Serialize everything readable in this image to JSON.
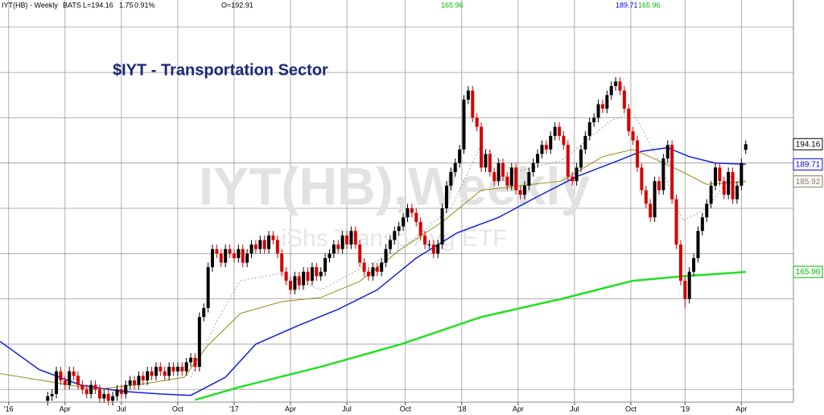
{
  "header": {
    "symbol": "IYT(HB) - Weekly",
    "exchange": "BATS",
    "last": "L=194.16",
    "change": "1.75",
    "change_pct": "0.91%",
    "open": "O=192.91",
    "ma_values": [
      {
        "text": "165.96",
        "color": "#00b800"
      },
      {
        "text": "189.71",
        "color": "#0000ee"
      },
      {
        "text": "165.96",
        "color": "#00b800"
      }
    ]
  },
  "chart_data": {
    "type": "candlestick",
    "title": "$IYT - Transportation Sector",
    "watermark": "IYT(HB),Weekly",
    "watermark_sub": "iShs Transp Avg ETF",
    "up_color": "#000000",
    "down_color": "#d40000",
    "grid": true,
    "xlim": [
      0,
      183
    ],
    "ylim": [
      137.2,
      226
    ],
    "xticks": [
      {
        "value": 2,
        "label": "'16"
      },
      {
        "value": 15,
        "label": "Apr"
      },
      {
        "value": 28,
        "label": "Jul"
      },
      {
        "value": 41,
        "label": "Oct"
      },
      {
        "value": 54,
        "label": "'17"
      },
      {
        "value": 67,
        "label": "Apr"
      },
      {
        "value": 80,
        "label": "Jul"
      },
      {
        "value": 93.5,
        "label": "Oct"
      },
      {
        "value": 106.5,
        "label": "'18"
      },
      {
        "value": 119.5,
        "label": "Apr"
      },
      {
        "value": 132.5,
        "label": "Jul"
      },
      {
        "value": 145.5,
        "label": "Oct"
      },
      {
        "value": 158,
        "label": "'19"
      },
      {
        "value": 171,
        "label": "Apr"
      }
    ],
    "ygrid": [
      140,
      150,
      160,
      170,
      180,
      190,
      200,
      210,
      220
    ],
    "x": [
      11,
      12,
      13,
      14,
      15,
      16,
      17,
      18,
      19,
      20,
      21,
      22,
      23,
      24,
      25,
      26,
      27,
      28,
      29,
      30,
      31,
      32,
      33,
      34,
      35,
      36,
      37,
      38,
      39,
      40,
      41,
      42,
      43,
      44,
      45,
      46,
      47,
      48,
      49,
      50,
      51,
      52,
      53,
      54,
      55,
      56,
      57,
      58,
      59,
      60,
      61,
      62,
      63,
      64,
      65,
      66,
      67,
      68,
      69,
      70,
      71,
      72,
      73,
      74,
      75,
      76,
      77,
      78,
      79,
      80,
      81,
      82,
      83,
      84,
      85,
      86,
      87,
      88,
      89,
      90,
      91,
      92,
      93,
      94,
      95,
      96,
      97,
      98,
      99,
      100,
      101,
      102,
      103,
      104,
      105,
      106,
      107,
      108,
      109,
      110,
      111,
      112,
      113,
      114,
      115,
      116,
      117,
      118,
      119,
      120,
      121,
      122,
      123,
      124,
      125,
      126,
      127,
      128,
      129,
      130,
      131,
      132,
      133,
      134,
      135,
      136,
      137,
      138,
      139,
      140,
      141,
      142,
      143,
      144,
      145,
      146,
      147,
      148,
      149,
      150,
      151,
      152,
      153,
      154,
      155,
      156,
      157,
      158,
      159,
      160,
      161,
      162,
      163,
      164,
      165,
      166,
      167,
      168,
      169,
      170,
      171,
      172
    ],
    "open": [
      137.5,
      138.5,
      139,
      144,
      142,
      141,
      144,
      143,
      141,
      140,
      139,
      141,
      140,
      138,
      139,
      137.5,
      138.5,
      140,
      139,
      141,
      142,
      141,
      143,
      142,
      144,
      143,
      145,
      144,
      143,
      145,
      144,
      145,
      144,
      146,
      147,
      145,
      156,
      158,
      167,
      171,
      170,
      168,
      171,
      170,
      169,
      171,
      168,
      170,
      172,
      171,
      173,
      171,
      174,
      173,
      170,
      166,
      164,
      162,
      165,
      163,
      166,
      164,
      167,
      165,
      166,
      169,
      170,
      172,
      171,
      174,
      172,
      175,
      172,
      168,
      166,
      165,
      167,
      166,
      168,
      171,
      173,
      175,
      176,
      178,
      180,
      179,
      177,
      174,
      172,
      172,
      170,
      172,
      180,
      185,
      188,
      190,
      193,
      204,
      206,
      200,
      198,
      189,
      192,
      188,
      186,
      190,
      187,
      185,
      189,
      184,
      183,
      185,
      188,
      190,
      192,
      194,
      193,
      196,
      198,
      196,
      194,
      187,
      186,
      189,
      193,
      196,
      199,
      200,
      203,
      202,
      205,
      207,
      208,
      206,
      202,
      197,
      195,
      189,
      184,
      181,
      178,
      186,
      184,
      191,
      194,
      182,
      172,
      164,
      160,
      166,
      169,
      175,
      178,
      181,
      185,
      189,
      186,
      183,
      188,
      182,
      185,
      192.91
    ],
    "high": [
      139.5,
      140,
      145,
      145,
      143,
      145,
      145,
      144,
      142,
      141,
      142,
      142,
      141,
      140,
      140,
      139.5,
      141,
      141,
      142,
      143,
      143,
      144,
      144,
      145,
      145,
      146,
      146,
      145,
      146,
      146,
      146,
      146,
      147,
      148,
      148,
      157,
      159,
      168,
      172,
      172,
      171,
      172,
      172,
      171,
      172,
      172,
      171,
      173,
      173,
      174,
      174,
      175,
      175,
      174,
      171,
      167,
      165,
      166,
      166,
      167,
      167,
      168,
      168,
      167,
      170,
      171,
      173,
      173,
      175,
      175,
      176,
      176,
      173,
      169,
      167,
      168,
      168,
      169,
      172,
      174,
      176,
      177,
      179,
      181,
      181,
      180,
      178,
      175,
      173,
      173,
      173,
      181,
      186,
      189,
      191,
      194,
      205,
      207,
      207,
      201,
      199,
      193,
      193,
      189,
      191,
      191,
      188,
      190,
      190,
      185,
      186,
      189,
      191,
      193,
      195,
      195,
      197,
      199,
      199,
      197,
      195,
      188,
      190,
      194,
      197,
      200,
      201,
      204,
      204,
      206,
      208,
      209,
      209,
      207,
      203,
      198,
      196,
      190,
      185,
      182,
      187,
      187,
      192,
      195,
      195,
      183,
      173,
      165,
      167,
      170,
      176,
      179,
      182,
      186,
      190,
      190,
      187,
      189,
      189,
      186,
      191,
      195
    ],
    "low": [
      136.5,
      137.5,
      138,
      141,
      140,
      140,
      142,
      140,
      139,
      138,
      138,
      139,
      137,
      137,
      136.5,
      136.5,
      137.5,
      138,
      138,
      140,
      140,
      140,
      141,
      141,
      142,
      142,
      143,
      142,
      142,
      143,
      143,
      143,
      143,
      145,
      144,
      144,
      155,
      157,
      166,
      169,
      167,
      167,
      169,
      168,
      168,
      167,
      167,
      169,
      170,
      170,
      170,
      170,
      172,
      169,
      165,
      163,
      161,
      161,
      162,
      162,
      163,
      163,
      164,
      164,
      165,
      168,
      169,
      170,
      170,
      171,
      171,
      171,
      167,
      165,
      164,
      164,
      165,
      165,
      167,
      170,
      172,
      174,
      175,
      177,
      178,
      176,
      173,
      171,
      171,
      169,
      169,
      171,
      179,
      184,
      187,
      189,
      192,
      203,
      199,
      197,
      188,
      188,
      187,
      185,
      185,
      186,
      184,
      184,
      183,
      182,
      182,
      184,
      187,
      189,
      191,
      192,
      192,
      195,
      195,
      193,
      186,
      185,
      185,
      188,
      192,
      195,
      198,
      199,
      201,
      201,
      204,
      206,
      205,
      201,
      196,
      194,
      188,
      183,
      180,
      177,
      177,
      183,
      183,
      190,
      181,
      171,
      163,
      158,
      159,
      165,
      168,
      174,
      177,
      180,
      184,
      185,
      182,
      182,
      181,
      181,
      184,
      192
    ],
    "close": [
      138.5,
      139,
      144,
      142,
      141,
      144,
      143,
      141,
      140,
      139,
      141,
      140,
      138,
      139,
      137.5,
      138.5,
      140,
      139,
      141,
      142,
      141,
      143,
      142,
      144,
      143,
      145,
      144,
      143,
      145,
      144,
      145,
      144,
      146,
      147,
      145,
      156,
      158,
      167,
      171,
      170,
      168,
      171,
      170,
      169,
      171,
      168,
      170,
      172,
      171,
      173,
      171,
      174,
      173,
      170,
      166,
      164,
      162,
      165,
      163,
      166,
      164,
      167,
      165,
      166,
      169,
      170,
      172,
      171,
      174,
      172,
      175,
      172,
      168,
      166,
      165,
      167,
      166,
      168,
      171,
      173,
      175,
      176,
      178,
      180,
      179,
      177,
      174,
      172,
      172,
      170,
      172,
      180,
      185,
      188,
      190,
      193,
      204,
      206,
      200,
      198,
      189,
      192,
      188,
      186,
      190,
      187,
      185,
      189,
      184,
      183,
      185,
      188,
      190,
      192,
      194,
      193,
      196,
      198,
      196,
      194,
      187,
      186,
      189,
      193,
      196,
      199,
      200,
      203,
      202,
      205,
      207,
      208,
      206,
      202,
      197,
      195,
      189,
      184,
      181,
      178,
      186,
      184,
      191,
      194,
      182,
      172,
      164,
      160,
      166,
      169,
      175,
      178,
      181,
      185,
      189,
      186,
      183,
      188,
      182,
      185,
      190,
      194.16
    ],
    "lines": [
      {
        "color": "#1020e0",
        "width": 1.5,
        "dashed": false,
        "x": [
          0,
          9,
          18.5,
          28,
          37,
          44,
          52,
          59,
          68.5,
          78,
          87,
          96,
          105.5,
          115,
          124,
          133,
          142.5,
          148,
          154,
          159,
          165,
          172
        ],
        "values": [
          150.6,
          144.4,
          141,
          139.6,
          139,
          138.7,
          142.7,
          150,
          154,
          157.7,
          162,
          169,
          174.6,
          178,
          182.6,
          187,
          190.5,
          192.6,
          193.4,
          191.4,
          190,
          189.71
        ]
      },
      {
        "color": "#9a8a1a",
        "width": 1,
        "dashed": false,
        "x": [
          0,
          11,
          22,
          33,
          42.5,
          48,
          55.5,
          65,
          74,
          83,
          92.5,
          102,
          111,
          120,
          129.5,
          139,
          146,
          152,
          157.5,
          163,
          172
        ],
        "values": [
          143.5,
          141.8,
          140,
          141.2,
          142.7,
          149.8,
          156.8,
          159.4,
          160.3,
          163.9,
          171,
          177,
          184,
          185,
          186,
          191.4,
          193,
          190.5,
          188,
          185.3,
          185.92
        ]
      },
      {
        "color": "#22e022",
        "width": 2.5,
        "dashed": false,
        "x": [
          45,
          55.5,
          74,
          92.5,
          111,
          129.5,
          146,
          157.5,
          172
        ],
        "values": [
          137.7,
          140.6,
          145,
          150,
          156,
          160,
          164,
          165,
          165.96
        ]
      },
      {
        "color": "#a0a0a0",
        "width": 1.2,
        "dashed": true,
        "x": [
          44,
          50,
          55.5,
          65,
          74,
          83,
          92.5,
          104,
          111,
          118.5,
          129.5,
          141,
          146,
          152,
          157.5,
          163,
          168.5,
          172
        ],
        "values": [
          142.7,
          155.1,
          164,
          165.7,
          162,
          166.6,
          171,
          180,
          194,
          188,
          190.5,
          199.4,
          201.2,
          190.5,
          177.3,
          180,
          187,
          186
        ]
      }
    ],
    "price_labels": [
      {
        "value": 194.16,
        "color": "#000000"
      },
      {
        "value": 189.71,
        "color": "#0000ee"
      },
      {
        "value": 185.92,
        "color": "#807a60"
      },
      {
        "value": 165.96,
        "color": "#00b800"
      }
    ]
  }
}
